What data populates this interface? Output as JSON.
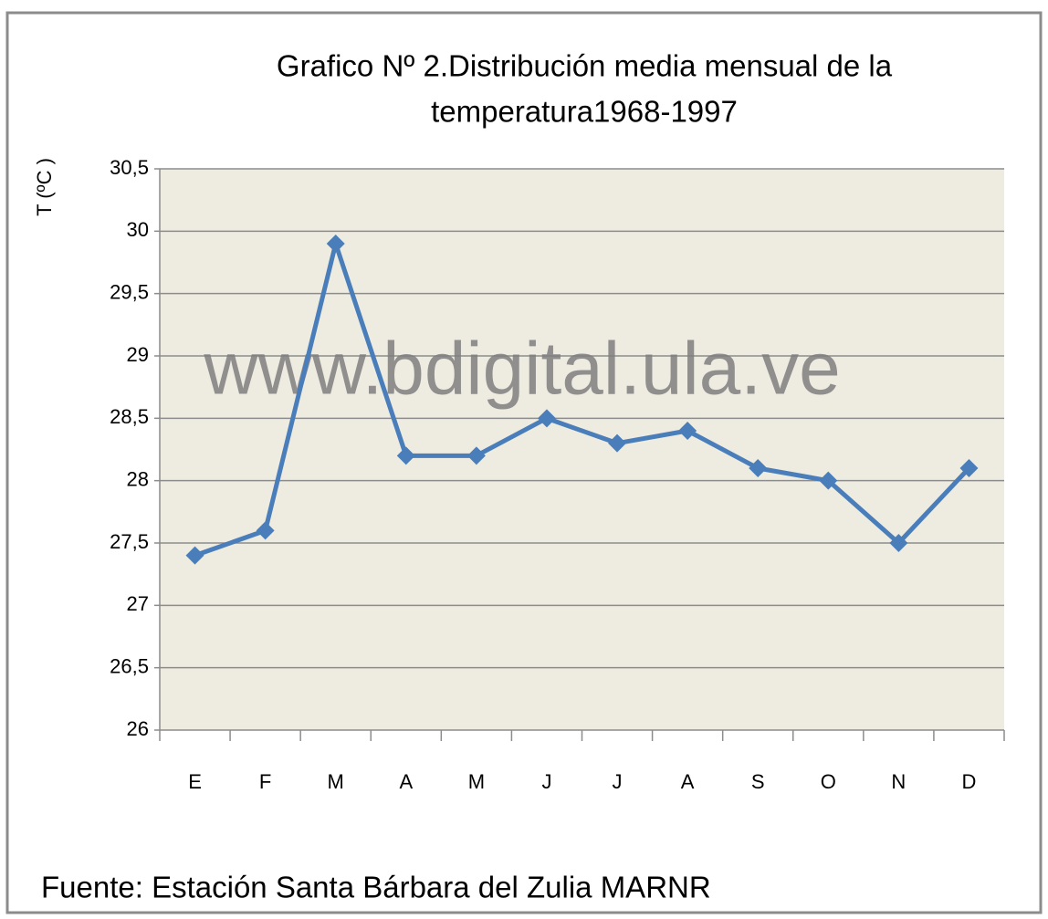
{
  "chart_data": {
    "type": "line",
    "title": [
      "Grafico Nº 2.Distribución  media mensual de la",
      "temperatura1968-1997"
    ],
    "y_label": "T (ºC )",
    "annotation": "www.bdigital.ula.ve",
    "source": "Fuente: Estación  Santa Bárbara del Zulia MARNR",
    "categories": [
      "E",
      "F",
      "M",
      "A",
      "M",
      "J",
      "J",
      "A",
      "S",
      "O",
      "N",
      "D"
    ],
    "series": [
      {
        "name": "T",
        "color": "#4a7ebb",
        "values": [
          27.4,
          27.6,
          29.9,
          28.2,
          28.2,
          28.5,
          28.3,
          28.4,
          28.1,
          28.0,
          27.5,
          28.1
        ]
      }
    ],
    "ylim": [
      26,
      30.5
    ],
    "yticks": [
      26,
      {
        "value": 26.5,
        "label": "26,5"
      },
      27,
      {
        "value": 27.5,
        "label": "27,5"
      },
      28,
      {
        "value": 28.5,
        "label": "28,5"
      },
      29,
      {
        "value": 29.5,
        "label": "29,5"
      },
      30,
      {
        "value": 30.5,
        "label": "30,5"
      }
    ],
    "grid": true,
    "plot_background": "#eeece1"
  }
}
